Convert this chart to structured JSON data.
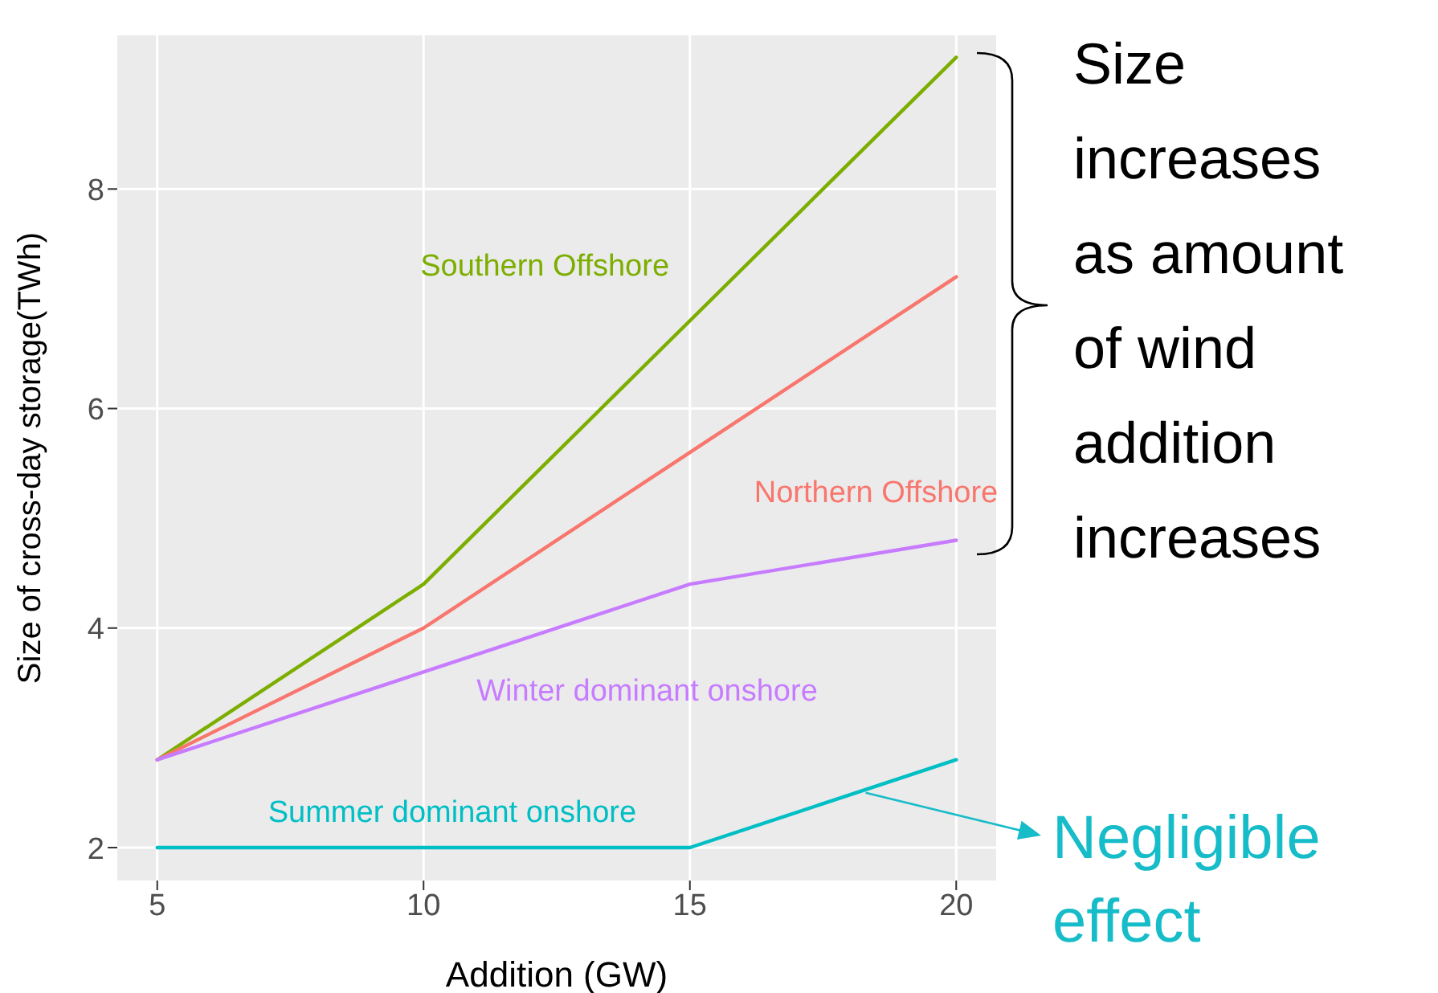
{
  "chart_data": {
    "type": "line",
    "xlabel": "Addition (GW)",
    "ylabel": "Size of cross-day storage(TWh)",
    "x": [
      5,
      10,
      15,
      20
    ],
    "series": [
      {
        "name": "Southern Offshore",
        "color": "#7cae00",
        "values": [
          2.8,
          4.4,
          6.8,
          9.2
        ]
      },
      {
        "name": "Northern Offshore",
        "color": "#f8766d",
        "values": [
          2.8,
          4.0,
          5.6,
          7.2
        ]
      },
      {
        "name": "Winter dominant onshore",
        "color": "#c77cff",
        "values": [
          2.8,
          3.6,
          4.4,
          4.8
        ]
      },
      {
        "name": "Summer dominant onshore",
        "color": "#00bfc4",
        "values": [
          2.0,
          2.0,
          2.0,
          2.8
        ]
      }
    ],
    "xlim": [
      4.25,
      20.75
    ],
    "xticks": [
      5,
      10,
      15,
      20
    ],
    "ylim": [
      1.7,
      9.4
    ],
    "yticks": [
      2,
      4,
      6,
      8
    ],
    "grid": true,
    "legend": false,
    "marker": "none",
    "line_style": "solid",
    "annotations": [
      "Size increases as amount of wind addition increases",
      {
        "text": "Negligible effect",
        "x": 18.3,
        "y": 2.5
      }
    ]
  }
}
